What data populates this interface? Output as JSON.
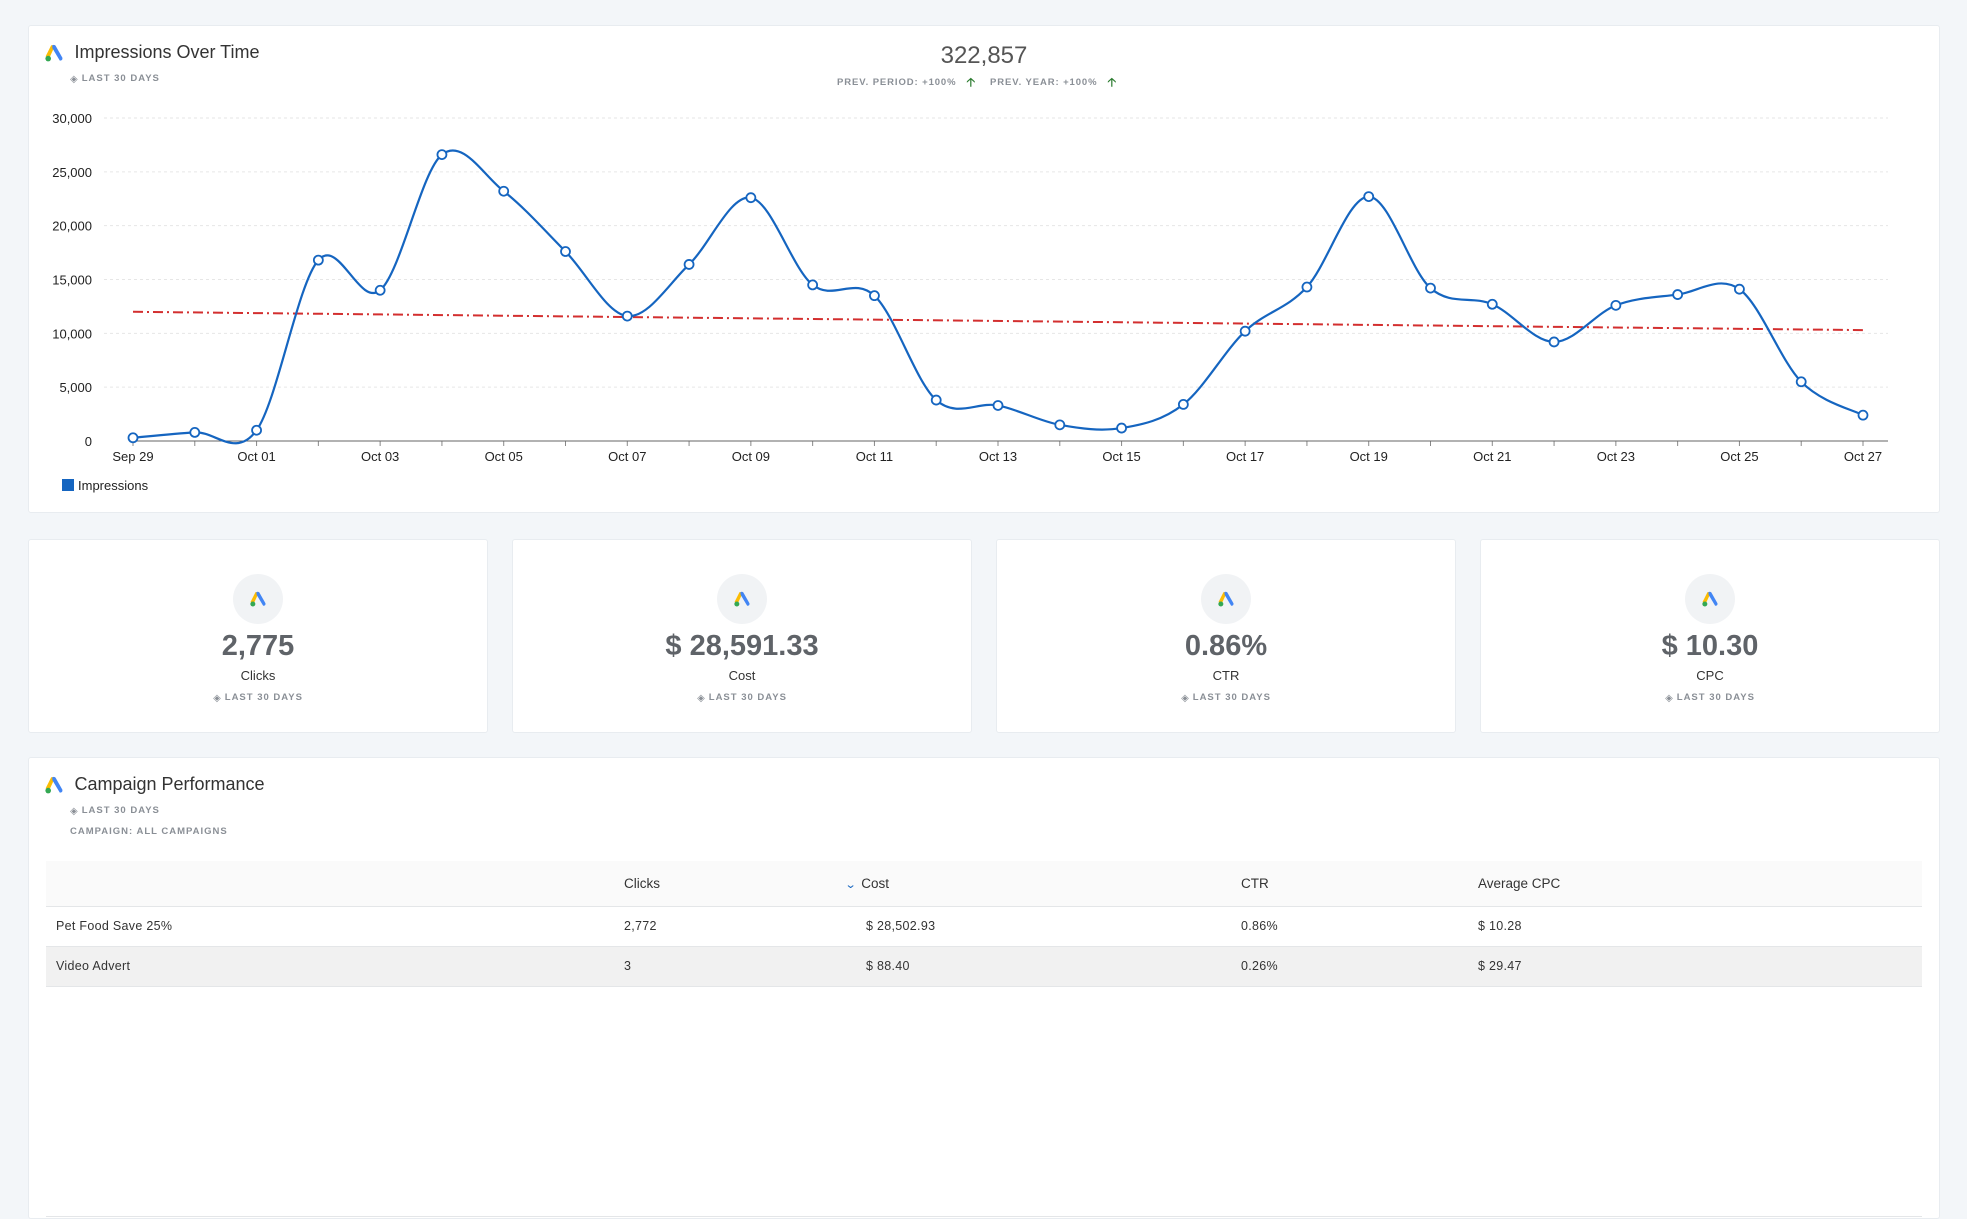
{
  "colors": {
    "accent": "#1565c0",
    "trend": "#d32f2f",
    "positive": "#2e7d32",
    "ads_blue": "#4285f4",
    "ads_yellow": "#fbbc04",
    "ads_green": "#34a853"
  },
  "impressions": {
    "title": "Impressions Over Time",
    "period": "LAST 30 DAYS",
    "total": "322,857",
    "prev_period": "PREV. PERIOD: +100%",
    "prev_year": "PREV. YEAR: +100%",
    "legend": "Impressions"
  },
  "chart_data": {
    "type": "line",
    "y_ticks": [
      "30,000",
      "25,000",
      "20,000",
      "15,000",
      "10,000",
      "5,000",
      "0"
    ],
    "ylim": [
      0,
      30000
    ],
    "x_tick_labels": [
      "Sep 29",
      "Oct 01",
      "Oct 03",
      "Oct 05",
      "Oct 07",
      "Oct 09",
      "Oct 11",
      "Oct 13",
      "Oct 15",
      "Oct 17",
      "Oct 19",
      "Oct 21",
      "Oct 23",
      "Oct 25",
      "Oct 27"
    ],
    "x": [
      "Sep 29",
      "Sep 30",
      "Oct 01",
      "Oct 02",
      "Oct 03",
      "Oct 04",
      "Oct 05",
      "Oct 06",
      "Oct 07",
      "Oct 08",
      "Oct 09",
      "Oct 10",
      "Oct 11",
      "Oct 12",
      "Oct 13",
      "Oct 14",
      "Oct 15",
      "Oct 16",
      "Oct 17",
      "Oct 18",
      "Oct 19",
      "Oct 20",
      "Oct 21",
      "Oct 22",
      "Oct 23",
      "Oct 24",
      "Oct 25",
      "Oct 26",
      "Oct 27"
    ],
    "series": [
      {
        "name": "Impressions",
        "values": [
          300,
          800,
          1000,
          16800,
          14000,
          26600,
          23200,
          17600,
          11600,
          16400,
          22600,
          14500,
          13500,
          3800,
          3300,
          1500,
          1200,
          3400,
          10200,
          14300,
          22700,
          14200,
          12700,
          9200,
          12600,
          13600,
          14100,
          5500,
          2400
        ]
      }
    ],
    "trend": {
      "start": 12000,
      "end": 10300
    },
    "grid": true
  },
  "kpis": [
    {
      "value": "2,775",
      "label": "Clicks",
      "period": "LAST 30 DAYS"
    },
    {
      "value": "$ 28,591.33",
      "label": "Cost",
      "period": "LAST 30 DAYS"
    },
    {
      "value": "0.86%",
      "label": "CTR",
      "period": "LAST 30 DAYS"
    },
    {
      "value": "$ 10.30",
      "label": "CPC",
      "period": "LAST 30 DAYS"
    }
  ],
  "campaign": {
    "title": "Campaign Performance",
    "period": "LAST 30 DAYS",
    "filter": "CAMPAIGN: ALL CAMPAIGNS",
    "columns": [
      "",
      "Clicks",
      "Cost",
      "CTR",
      "Average CPC"
    ],
    "rows": [
      [
        "Pet Food Save 25%",
        "2,772",
        "$ 28,502.93",
        "0.86%",
        "$ 10.28"
      ],
      [
        "Video Advert",
        "3",
        "$ 88.40",
        "0.26%",
        "$ 29.47"
      ]
    ]
  }
}
